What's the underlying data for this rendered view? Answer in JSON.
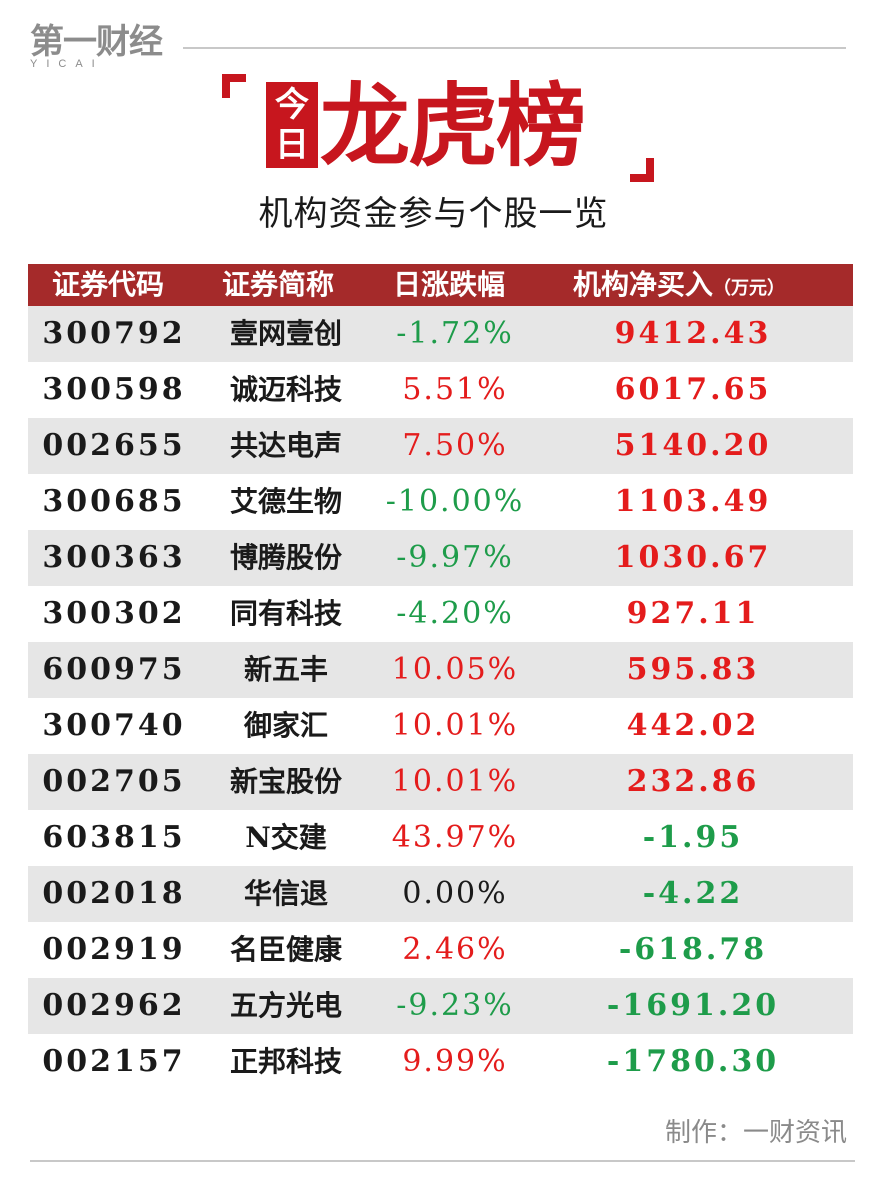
{
  "logo": {
    "main": "第一财经",
    "sub": "YICAI"
  },
  "header": {
    "today_chars": [
      "今",
      "日"
    ],
    "title": "龙虎榜",
    "subtitle": "机构资金参与个股一览"
  },
  "table": {
    "columns": [
      "证券代码",
      "证券简称",
      "日涨跌幅",
      "机构净买入"
    ],
    "unit": "（万元）",
    "rows": [
      {
        "code": "300792",
        "name": "壹网壹创",
        "change": "-1.72%",
        "change_color": "green",
        "net": "9412.43",
        "net_color": "red"
      },
      {
        "code": "300598",
        "name": "诚迈科技",
        "change": "5.51%",
        "change_color": "red",
        "net": "6017.65",
        "net_color": "red"
      },
      {
        "code": "002655",
        "name": "共达电声",
        "change": "7.50%",
        "change_color": "red",
        "net": "5140.20",
        "net_color": "red"
      },
      {
        "code": "300685",
        "name": "艾德生物",
        "change": "-10.00%",
        "change_color": "green",
        "net": "1103.49",
        "net_color": "red"
      },
      {
        "code": "300363",
        "name": "博腾股份",
        "change": "-9.97%",
        "change_color": "green",
        "net": "1030.67",
        "net_color": "red"
      },
      {
        "code": "300302",
        "name": "同有科技",
        "change": "-4.20%",
        "change_color": "green",
        "net": "927.11",
        "net_color": "red"
      },
      {
        "code": "600975",
        "name": "新五丰",
        "change": "10.05%",
        "change_color": "red",
        "net": "595.83",
        "net_color": "red"
      },
      {
        "code": "300740",
        "name": "御家汇",
        "change": "10.01%",
        "change_color": "red",
        "net": "442.02",
        "net_color": "red"
      },
      {
        "code": "002705",
        "name": "新宝股份",
        "change": "10.01%",
        "change_color": "red",
        "net": "232.86",
        "net_color": "red"
      },
      {
        "code": "603815",
        "name": "N交建",
        "change": "43.97%",
        "change_color": "red",
        "net": "-1.95",
        "net_color": "green"
      },
      {
        "code": "002018",
        "name": "华信退",
        "change": "0.00%",
        "change_color": "black",
        "net": "-4.22",
        "net_color": "green"
      },
      {
        "code": "002919",
        "name": "名臣健康",
        "change": "2.46%",
        "change_color": "red",
        "net": "-618.78",
        "net_color": "green"
      },
      {
        "code": "002962",
        "name": "五方光电",
        "change": "-9.23%",
        "change_color": "green",
        "net": "-1691.20",
        "net_color": "green"
      },
      {
        "code": "002157",
        "name": "正邦科技",
        "change": "9.99%",
        "change_color": "red",
        "net": "-1780.30",
        "net_color": "green"
      }
    ]
  },
  "footer": {
    "credit": "制作：一财资讯"
  },
  "colors": {
    "accent_red": "#c7161e",
    "header_bg": "#a52a2a",
    "up": "#e41c1c",
    "down": "#1e9c4a"
  }
}
